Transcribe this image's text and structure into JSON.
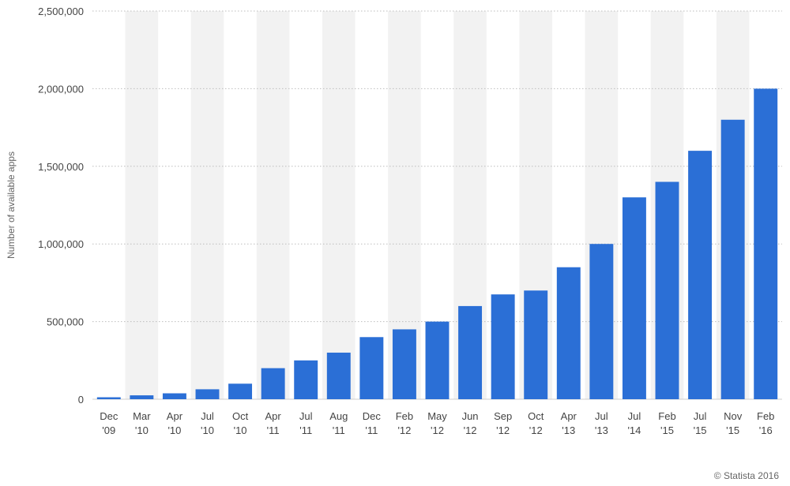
{
  "chart_data": {
    "type": "bar",
    "categories": [
      [
        "Dec",
        "'09"
      ],
      [
        "Mar",
        "'10"
      ],
      [
        "Apr",
        "'10"
      ],
      [
        "Jul",
        "'10"
      ],
      [
        "Oct",
        "'10"
      ],
      [
        "Apr",
        "'11"
      ],
      [
        "Jul",
        "'11"
      ],
      [
        "Aug",
        "'11"
      ],
      [
        "Dec",
        "'11"
      ],
      [
        "Feb",
        "'12"
      ],
      [
        "May",
        "'12"
      ],
      [
        "Jun",
        "'12"
      ],
      [
        "Sep",
        "'12"
      ],
      [
        "Oct",
        "'12"
      ],
      [
        "Apr",
        "'13"
      ],
      [
        "Jul",
        "'13"
      ],
      [
        "Jul",
        "'14"
      ],
      [
        "Feb",
        "'15"
      ],
      [
        "Jul",
        "'15"
      ],
      [
        "Nov",
        "'15"
      ],
      [
        "Feb",
        "'16"
      ]
    ],
    "values": [
      12500,
      25000,
      38000,
      64000,
      100000,
      200000,
      250000,
      300000,
      400000,
      450000,
      500000,
      600000,
      675000,
      700000,
      850000,
      1000000,
      1300000,
      1400000,
      1600000,
      1800000,
      2000000
    ],
    "ylabel": "Number of available apps",
    "ylim": [
      0,
      2500000
    ],
    "yticks": [
      0,
      500000,
      1000000,
      1500000,
      2000000,
      2500000
    ],
    "ytick_labels": [
      "0",
      "500,000",
      "1,000,000",
      "1,500,000",
      "2,000,000",
      "2,500,000"
    ],
    "grid": true,
    "bar_color": "#2b6fd6",
    "band_color": "#f2f2f2"
  },
  "credit": "© Statista 2016"
}
